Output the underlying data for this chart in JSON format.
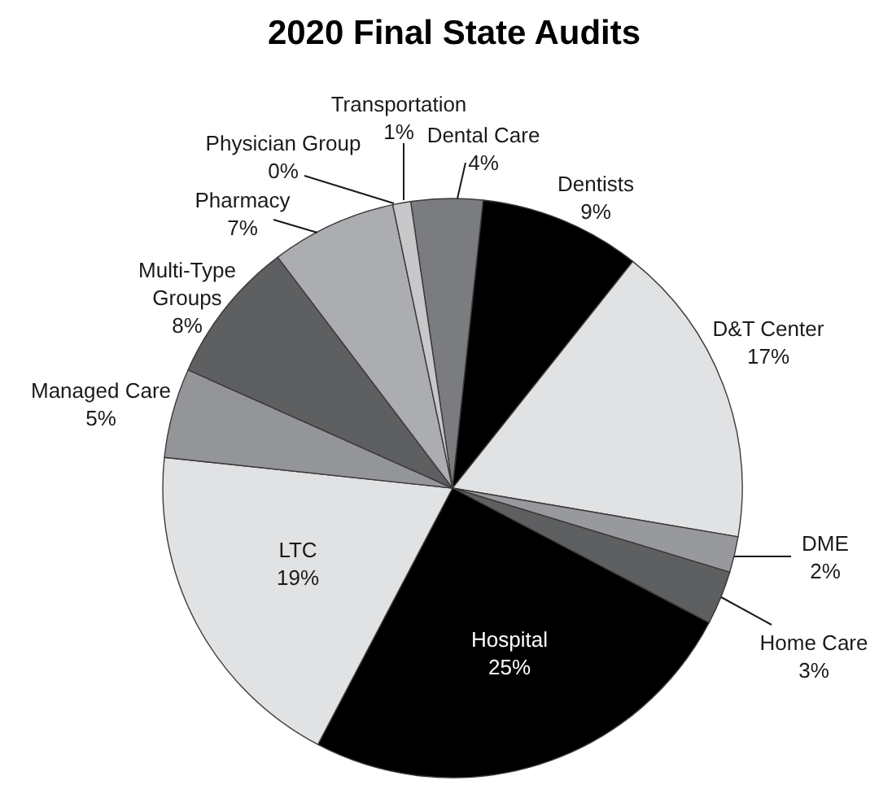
{
  "chart_data": {
    "type": "pie",
    "title": "2020 Final State Audits",
    "categories": [
      "Dental Care",
      "Dentists",
      "D&T Center",
      "DME",
      "Home Care",
      "Hospital",
      "LTC",
      "Managed Care",
      "Multi-Type Groups",
      "Pharmacy",
      "Physician Group",
      "Transportation"
    ],
    "values": [
      4,
      9,
      17,
      2,
      3,
      25,
      19,
      5,
      8,
      7,
      0,
      1
    ],
    "colors": [
      "#7b7c7f",
      "#000000",
      "#e1e2e4",
      "#98999c",
      "#5e5f61",
      "#000000",
      "#e1e2e4",
      "#939598",
      "#5e5f61",
      "#acadb0",
      null,
      "#c7c8ca"
    ],
    "value_labels": [
      "4%",
      "9%",
      "17%",
      "2%",
      "3%",
      "25%",
      "19%",
      "5%",
      "8%",
      "7%",
      "0%",
      "1%"
    ]
  }
}
